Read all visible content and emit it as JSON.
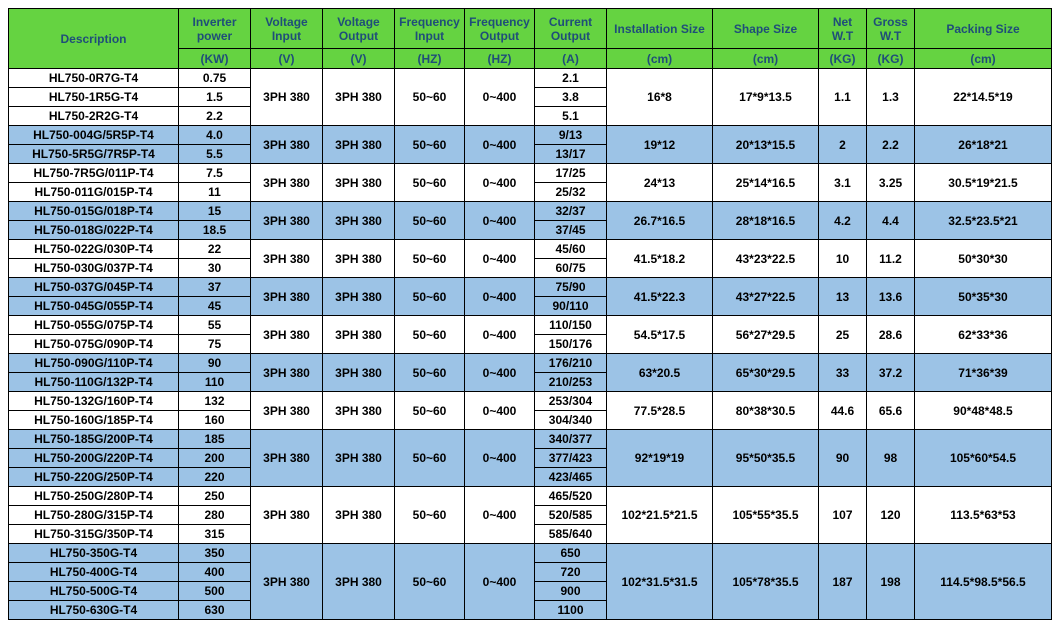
{
  "header": {
    "row1": {
      "description": "Description",
      "inverter_power": "Inverter power",
      "voltage_input": "Voltage Input",
      "voltage_output": "Voltage Output",
      "frequency_input": "Frequency Input",
      "frequency_output": "Frequency Output",
      "current_output": "Current Output",
      "installation_size": "Installation Size",
      "shape_size": "Shape Size",
      "net_wt": "Net W.T",
      "gross_wt": "Gross W.T",
      "packing_size": "Packing Size"
    },
    "row2": {
      "kw": "(KW)",
      "v_in": "(V)",
      "v_out": "(V)",
      "hz_in": "(HZ)",
      "hz_out": "(HZ)",
      "a": "(A)",
      "cm_inst": "(cm)",
      "cm_shape": "(cm)",
      "kg_net": "(KG)",
      "kg_gross": "(KG)",
      "cm_pack": "(cm)"
    }
  },
  "groups": [
    {
      "band": "white",
      "rows": [
        {
          "desc": "HL750-0R7G-T4",
          "power": "0.75",
          "current": "2.1"
        },
        {
          "desc": "HL750-1R5G-T4",
          "power": "1.5",
          "current": "3.8"
        },
        {
          "desc": "HL750-2R2G-T4",
          "power": "2.2",
          "current": "5.1"
        }
      ],
      "voltage_in": "3PH 380",
      "voltage_out": "3PH 380",
      "freq_in": "50~60",
      "freq_out": "0~400",
      "install": "16*8",
      "shape": "17*9*13.5",
      "net": "1.1",
      "gross": "1.3",
      "packing": "22*14.5*19"
    },
    {
      "band": "blue",
      "rows": [
        {
          "desc": "HL750-004G/5R5P-T4",
          "power": "4.0",
          "current": "9/13"
        },
        {
          "desc": "HL750-5R5G/7R5P-T4",
          "power": "5.5",
          "current": "13/17"
        }
      ],
      "voltage_in": "3PH 380",
      "voltage_out": "3PH 380",
      "freq_in": "50~60",
      "freq_out": "0~400",
      "install": "19*12",
      "shape": "20*13*15.5",
      "net": "2",
      "gross": "2.2",
      "packing": "26*18*21"
    },
    {
      "band": "white",
      "rows": [
        {
          "desc": "HL750-7R5G/011P-T4",
          "power": "7.5",
          "current": "17/25"
        },
        {
          "desc": "HL750-011G/015P-T4",
          "power": "11",
          "current": "25/32"
        }
      ],
      "voltage_in": "3PH 380",
      "voltage_out": "3PH 380",
      "freq_in": "50~60",
      "freq_out": "0~400",
      "install": "24*13",
      "shape": "25*14*16.5",
      "net": "3.1",
      "gross": "3.25",
      "packing": "30.5*19*21.5"
    },
    {
      "band": "blue",
      "rows": [
        {
          "desc": "HL750-015G/018P-T4",
          "power": "15",
          "current": "32/37"
        },
        {
          "desc": "HL750-018G/022P-T4",
          "power": "18.5",
          "current": "37/45"
        }
      ],
      "voltage_in": "3PH 380",
      "voltage_out": "3PH 380",
      "freq_in": "50~60",
      "freq_out": "0~400",
      "install": "26.7*16.5",
      "shape": "28*18*16.5",
      "net": "4.2",
      "gross": "4.4",
      "packing": "32.5*23.5*21"
    },
    {
      "band": "white",
      "rows": [
        {
          "desc": "HL750-022G/030P-T4",
          "power": "22",
          "current": "45/60"
        },
        {
          "desc": "HL750-030G/037P-T4",
          "power": "30",
          "current": "60/75"
        }
      ],
      "voltage_in": "3PH 380",
      "voltage_out": "3PH 380",
      "freq_in": "50~60",
      "freq_out": "0~400",
      "install": "41.5*18.2",
      "shape": "43*23*22.5",
      "net": "10",
      "gross": "11.2",
      "packing": "50*30*30"
    },
    {
      "band": "blue",
      "rows": [
        {
          "desc": "HL750-037G/045P-T4",
          "power": "37",
          "current": "75/90"
        },
        {
          "desc": "HL750-045G/055P-T4",
          "power": "45",
          "current": "90/110"
        }
      ],
      "voltage_in": "3PH 380",
      "voltage_out": "3PH 380",
      "freq_in": "50~60",
      "freq_out": "0~400",
      "install": "41.5*22.3",
      "shape": "43*27*22.5",
      "net": "13",
      "gross": "13.6",
      "packing": "50*35*30"
    },
    {
      "band": "white",
      "rows": [
        {
          "desc": "HL750-055G/075P-T4",
          "power": "55",
          "current": "110/150"
        },
        {
          "desc": "HL750-075G/090P-T4",
          "power": "75",
          "current": "150/176"
        }
      ],
      "voltage_in": "3PH 380",
      "voltage_out": "3PH 380",
      "freq_in": "50~60",
      "freq_out": "0~400",
      "install": "54.5*17.5",
      "shape": "56*27*29.5",
      "net": "25",
      "gross": "28.6",
      "packing": "62*33*36"
    },
    {
      "band": "blue",
      "rows": [
        {
          "desc": "HL750-090G/110P-T4",
          "power": "90",
          "current": "176/210"
        },
        {
          "desc": "HL750-110G/132P-T4",
          "power": "110",
          "current": "210/253"
        }
      ],
      "voltage_in": "3PH 380",
      "voltage_out": "3PH 380",
      "freq_in": "50~60",
      "freq_out": "0~400",
      "install": "63*20.5",
      "shape": "65*30*29.5",
      "net": "33",
      "gross": "37.2",
      "packing": "71*36*39"
    },
    {
      "band": "white",
      "rows": [
        {
          "desc": "HL750-132G/160P-T4",
          "power": "132",
          "current": "253/304"
        },
        {
          "desc": "HL750-160G/185P-T4",
          "power": "160",
          "current": "304/340"
        }
      ],
      "voltage_in": "3PH 380",
      "voltage_out": "3PH 380",
      "freq_in": "50~60",
      "freq_out": "0~400",
      "install": "77.5*28.5",
      "shape": "80*38*30.5",
      "net": "44.6",
      "gross": "65.6",
      "packing": "90*48*48.5"
    },
    {
      "band": "blue",
      "rows": [
        {
          "desc": "HL750-185G/200P-T4",
          "power": "185",
          "current": "340/377"
        },
        {
          "desc": "HL750-200G/220P-T4",
          "power": "200",
          "current": "377/423"
        },
        {
          "desc": "HL750-220G/250P-T4",
          "power": "220",
          "current": "423/465"
        }
      ],
      "voltage_in": "3PH 380",
      "voltage_out": "3PH 380",
      "freq_in": "50~60",
      "freq_out": "0~400",
      "install": "92*19*19",
      "shape": "95*50*35.5",
      "net": "90",
      "gross": "98",
      "packing": "105*60*54.5"
    },
    {
      "band": "white",
      "rows": [
        {
          "desc": "HL750-250G/280P-T4",
          "power": "250",
          "current": "465/520"
        },
        {
          "desc": "HL750-280G/315P-T4",
          "power": "280",
          "current": "520/585"
        },
        {
          "desc": "HL750-315G/350P-T4",
          "power": "315",
          "current": "585/640"
        }
      ],
      "voltage_in": "3PH 380",
      "voltage_out": "3PH 380",
      "freq_in": "50~60",
      "freq_out": "0~400",
      "install": "102*21.5*21.5",
      "shape": "105*55*35.5",
      "net": "107",
      "gross": "120",
      "packing": "113.5*63*53"
    },
    {
      "band": "blue",
      "rows": [
        {
          "desc": "HL750-350G-T4",
          "power": "350",
          "current": "650"
        },
        {
          "desc": "HL750-400G-T4",
          "power": "400",
          "current": "720"
        },
        {
          "desc": "HL750-500G-T4",
          "power": "500",
          "current": "900"
        },
        {
          "desc": "HL750-630G-T4",
          "power": "630",
          "current": "1100"
        }
      ],
      "voltage_in": "3PH 380",
      "voltage_out": "3PH 380",
      "freq_in": "50~60",
      "freq_out": "0~400",
      "install": "102*31.5*31.5",
      "shape": "105*78*35.5",
      "net": "187",
      "gross": "198",
      "packing": "114.5*98.5*56.5"
    }
  ],
  "style": {
    "header_bg": "#65d341",
    "header_text": "#1f4e79",
    "band_blue": "#9cc3e6",
    "band_white": "#ffffff",
    "border": "#000000",
    "font_size_header": 12,
    "font_size_body": 12
  }
}
